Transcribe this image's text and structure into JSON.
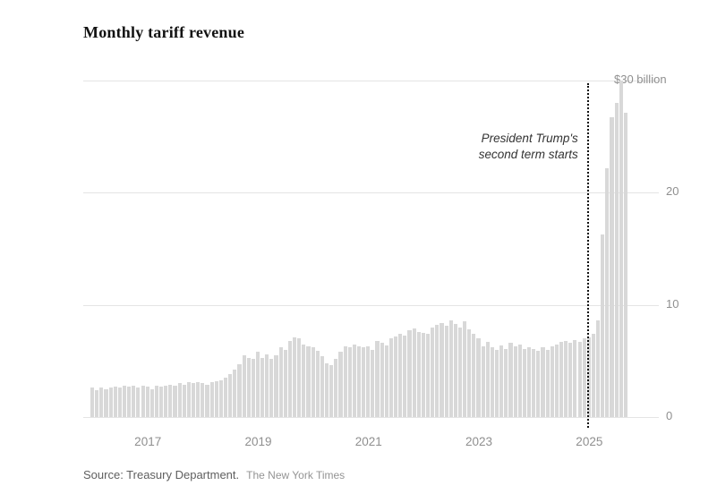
{
  "chart": {
    "title": "Monthly tariff revenue",
    "source_label": "Source: Treasury Department.",
    "credit": "The New York Times"
  },
  "chart_data": {
    "type": "bar",
    "title": "Monthly tariff revenue",
    "unit": "USD billions per month",
    "x_start": "2016-01",
    "x_end": "2025-09",
    "ylim": [
      0,
      30
    ],
    "grid": "horizontal",
    "bar_color": "#d8d8d8",
    "yticks": [
      {
        "value": 0,
        "label": "0"
      },
      {
        "value": 10,
        "label": "10"
      },
      {
        "value": 20,
        "label": "20"
      },
      {
        "value": 30,
        "label": "$30 billion"
      }
    ],
    "xticks": [
      {
        "month_index": 12,
        "label": "2017"
      },
      {
        "month_index": 36,
        "label": "2019"
      },
      {
        "month_index": 60,
        "label": "2021"
      },
      {
        "month_index": 84,
        "label": "2023"
      },
      {
        "month_index": 108,
        "label": "2025"
      }
    ],
    "annotation": {
      "lines": [
        "President Trump's",
        "second term starts"
      ],
      "month_index": 108
    },
    "values": [
      2.6,
      2.4,
      2.6,
      2.5,
      2.6,
      2.7,
      2.6,
      2.8,
      2.7,
      2.8,
      2.6,
      2.8,
      2.7,
      2.5,
      2.8,
      2.7,
      2.8,
      2.9,
      2.8,
      3.0,
      2.9,
      3.1,
      3.0,
      3.1,
      3.0,
      2.9,
      3.1,
      3.2,
      3.3,
      3.5,
      3.8,
      4.2,
      4.7,
      5.5,
      5.3,
      5.2,
      5.8,
      5.3,
      5.6,
      5.2,
      5.5,
      6.2,
      6.0,
      6.8,
      7.1,
      7.0,
      6.5,
      6.3,
      6.2,
      5.9,
      5.4,
      4.8,
      4.6,
      5.2,
      5.8,
      6.3,
      6.2,
      6.5,
      6.3,
      6.2,
      6.3,
      6.0,
      6.8,
      6.6,
      6.4,
      7.0,
      7.2,
      7.4,
      7.3,
      7.7,
      7.9,
      7.6,
      7.5,
      7.4,
      8.0,
      8.2,
      8.4,
      8.1,
      8.6,
      8.3,
      8.0,
      8.5,
      7.8,
      7.4,
      7.0,
      6.3,
      6.7,
      6.2,
      6.0,
      6.4,
      6.1,
      6.6,
      6.3,
      6.5,
      6.1,
      6.2,
      6.1,
      5.9,
      6.2,
      6.0,
      6.3,
      6.5,
      6.7,
      6.8,
      6.6,
      6.9,
      6.7,
      7.0,
      7.1,
      7.4,
      8.6,
      16.3,
      22.2,
      26.7,
      28.0,
      30.0,
      27.1
    ]
  }
}
